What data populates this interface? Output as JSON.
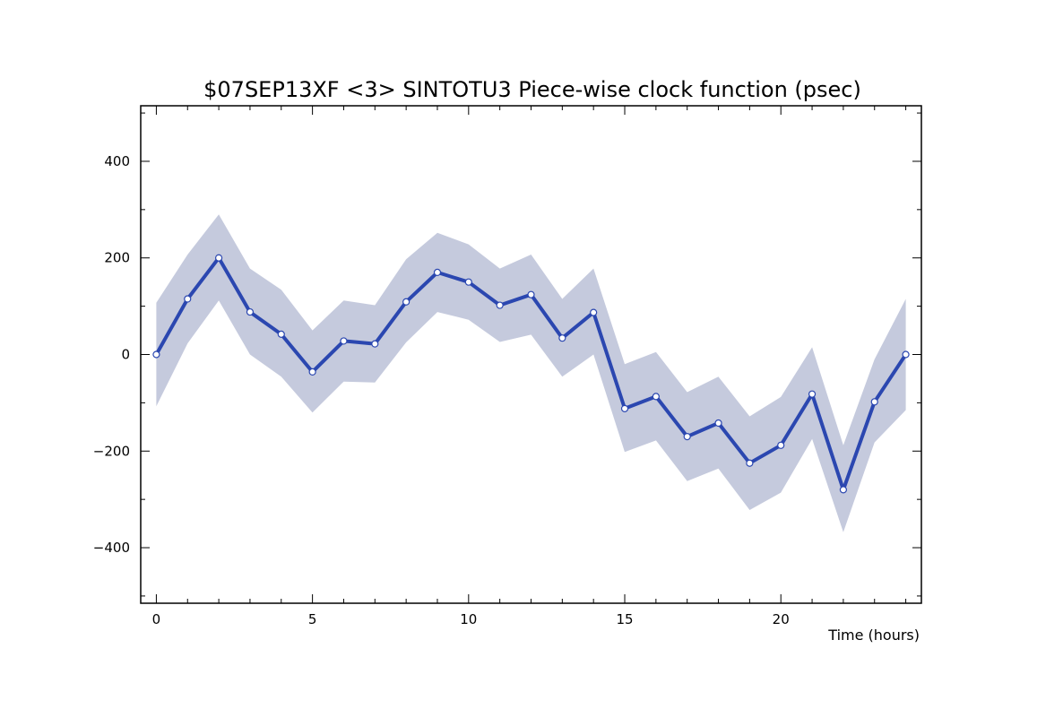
{
  "chart_data": {
    "type": "line",
    "title": "$07SEP13XF <3>  SINTOTU3  Piece-wise clock function (psec)",
    "xlabel": "Time (hours)",
    "ylabel": "",
    "xlim": [
      -0.5,
      24.5
    ],
    "ylim": [
      -515,
      515
    ],
    "x_ticks": [
      0,
      5,
      10,
      15,
      20
    ],
    "x_tick_labels": [
      "0",
      "5",
      "10",
      "15",
      "20"
    ],
    "y_ticks": [
      400,
      200,
      0,
      -200,
      -400
    ],
    "y_tick_labels": [
      "400",
      "200",
      "0",
      "−200",
      "−400"
    ],
    "grid": false,
    "legend": "none",
    "series": [
      {
        "x": [
          0,
          1,
          2,
          3,
          4,
          5,
          6,
          7,
          8,
          9,
          10,
          11,
          12,
          13,
          14,
          15,
          16,
          17,
          18,
          19,
          20,
          21,
          22,
          23,
          24
        ],
        "values": [
          0,
          115,
          200,
          88,
          42,
          -36,
          28,
          22,
          109,
          170,
          150,
          102,
          124,
          34,
          87,
          -112,
          -87,
          -170,
          -142,
          -225,
          -188,
          -82,
          -280,
          -98,
          0
        ],
        "band_upper": [
          107,
          207,
          290,
          178,
          134,
          50,
          112,
          102,
          197,
          252,
          228,
          178,
          207,
          115,
          178,
          -20,
          5,
          -78,
          -46,
          -128,
          -88,
          15,
          -188,
          -10,
          115
        ],
        "band_lower": [
          -107,
          23,
          112,
          0,
          -46,
          -120,
          -56,
          -58,
          25,
          88,
          72,
          26,
          41,
          -46,
          0,
          -202,
          -178,
          -262,
          -236,
          -322,
          -286,
          -175,
          -368,
          -182,
          -115
        ]
      }
    ],
    "colors": {
      "line": "#2b47b0",
      "band": "#c5cadd",
      "marker_fill": "#ffffff",
      "axis": "#000000"
    }
  }
}
